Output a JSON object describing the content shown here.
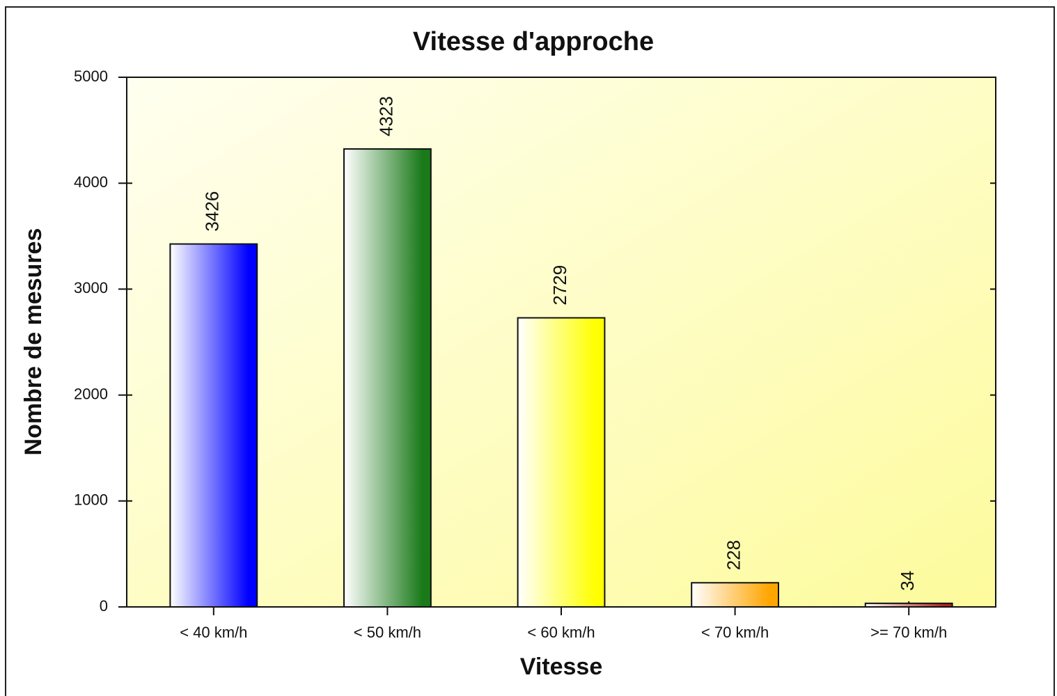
{
  "chart_data": {
    "type": "bar",
    "title": "Vitesse d'approche",
    "x_label": "Vitesse",
    "y_label": "Nombre de mesures",
    "categories": [
      "< 40 km/h",
      "< 50 km/h",
      "< 60 km/h",
      "< 70 km/h",
      ">= 70 km/h"
    ],
    "values": [
      3426,
      4323,
      2729,
      228,
      34
    ],
    "colors": [
      "#0000ff",
      "#1a7a1a",
      "#ffff00",
      "#ffa500",
      "#b22222"
    ],
    "ylim": [
      0,
      5000
    ],
    "yticks": [
      0,
      1000,
      2000,
      3000,
      4000,
      5000
    ],
    "grid": false
  }
}
